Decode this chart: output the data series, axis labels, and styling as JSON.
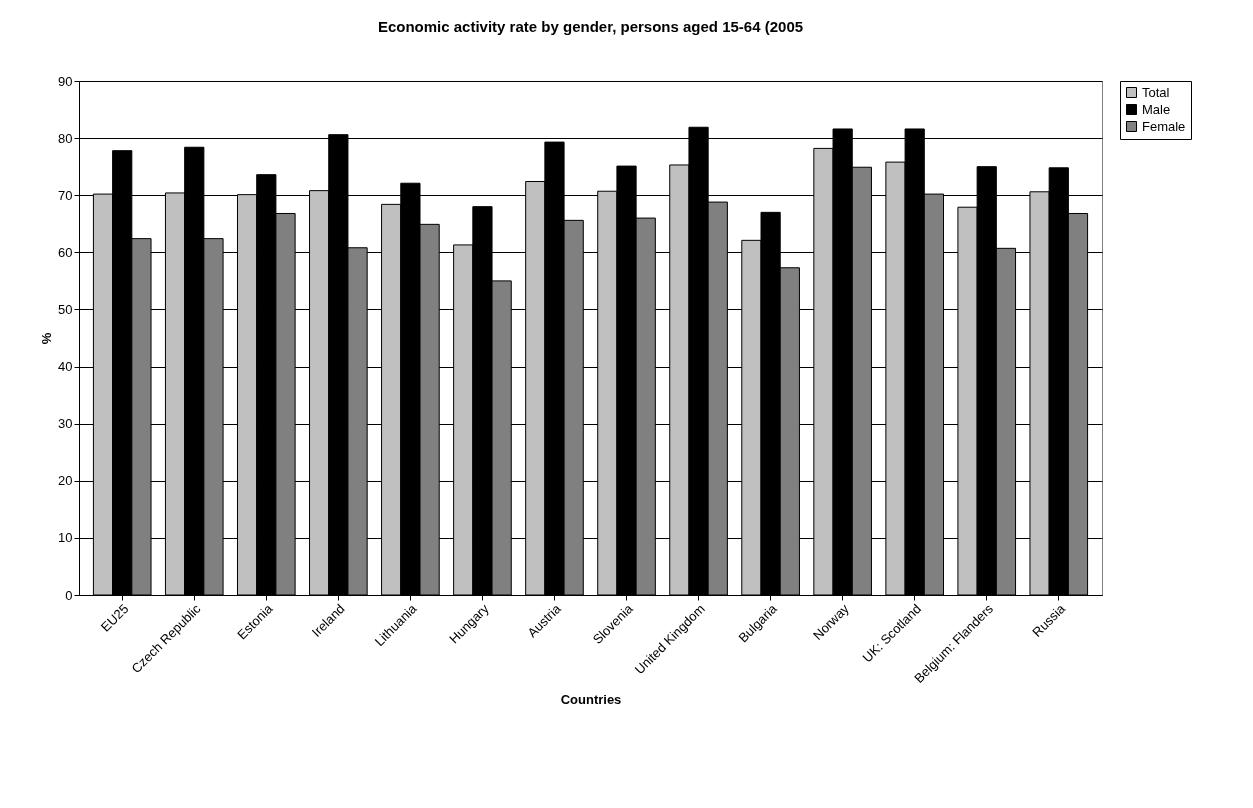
{
  "chart_data": {
    "type": "bar",
    "title": "Economic activity rate by gender, persons aged 15-64 (2005",
    "xlabel": "Countries",
    "ylabel": "%",
    "categories": [
      "EU25",
      "Czech Republic",
      "Estonia",
      "Ireland",
      "Lithuania",
      "Hungary",
      "Austria",
      "Slovenia",
      "United Kingdom",
      "Bulgaria",
      "Norway",
      "UK: Scotland",
      "Belgium: Flanders",
      "Russia"
    ],
    "series": [
      {
        "name": "Total",
        "color": "#c0c0c0",
        "values": [
          70.2,
          70.4,
          70.1,
          70.8,
          68.4,
          61.3,
          72.4,
          70.7,
          75.3,
          62.1,
          78.2,
          75.8,
          67.9,
          70.6
        ]
      },
      {
        "name": "Male",
        "color": "#000000",
        "values": [
          77.8,
          78.4,
          73.6,
          80.6,
          72.1,
          68.0,
          79.3,
          75.1,
          81.9,
          67.0,
          81.6,
          81.6,
          75.0,
          74.8
        ]
      },
      {
        "name": "Female",
        "color": "#808080",
        "values": [
          62.4,
          62.4,
          66.8,
          60.8,
          64.9,
          55.0,
          65.6,
          66.0,
          68.8,
          57.3,
          74.9,
          70.2,
          60.7,
          66.8
        ]
      }
    ],
    "ylim": [
      0,
      90
    ],
    "yticks": [
      0,
      10,
      20,
      30,
      40,
      50,
      60,
      70,
      80,
      90
    ],
    "grid": "y",
    "legend": "right"
  }
}
